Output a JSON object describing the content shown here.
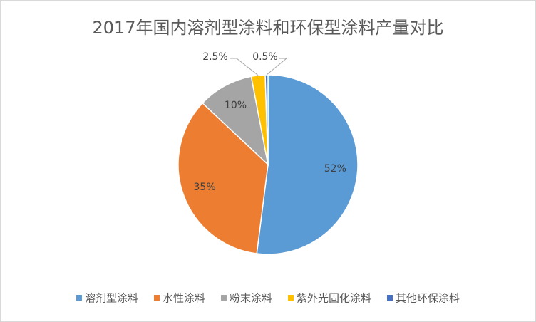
{
  "chart_data": {
    "type": "pie",
    "title": "2017年国内溶剂型涂料和环保型涂料产量对比",
    "categories": [
      "溶剂型涂料",
      "水性涂料",
      "粉末涂料",
      "紫外光固化涂料",
      "其他环保涂料"
    ],
    "values": [
      52,
      35,
      10,
      2.5,
      0.5
    ],
    "value_labels": [
      "52%",
      "35%",
      "10%",
      "2.5%",
      "0.5%"
    ],
    "colors": [
      "#5b9bd5",
      "#ed7d31",
      "#a5a5a5",
      "#ffc000",
      "#4472c4"
    ],
    "legend": "bottom"
  }
}
